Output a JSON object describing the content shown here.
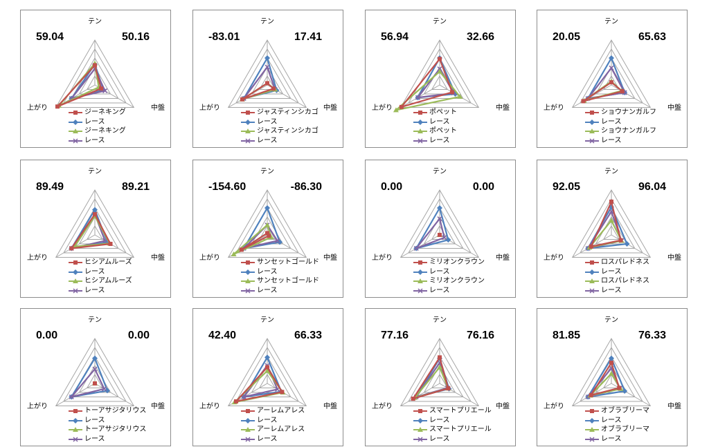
{
  "axes": [
    "テン",
    "中盤",
    "上がり"
  ],
  "colors": {
    "horse_a": "#c0504d",
    "race_a": "#4f81bd",
    "horse_b": "#9bbb59",
    "race_b": "#8064a2",
    "grid": "#a6a6a6"
  },
  "markers": {
    "horse_a": "square",
    "race_a": "diamond",
    "horse_b": "triangle",
    "race_b": "x"
  },
  "chart_data": [
    {
      "type": "radar",
      "left_value": "59.04",
      "right_value": "50.16",
      "legend": [
        "ジーネキング",
        "レース",
        "ジーネキング",
        "レース"
      ],
      "axes": [
        "テン",
        "中盤",
        "上がり"
      ],
      "rmax": 5,
      "series": [
        {
          "values": [
            2.2,
            0.8,
            4.8
          ]
        },
        {
          "values": [
            2.3,
            1.1,
            3.0
          ]
        },
        {
          "values": [
            2.4,
            0.5,
            4.6
          ]
        },
        {
          "values": [
            1.8,
            1.3,
            3.0
          ]
        }
      ]
    },
    {
      "type": "radar",
      "left_value": "-83.01",
      "right_value": "17.41",
      "legend": [
        "ジャスティンシカゴ",
        "レース",
        "ジャスティンシカゴ",
        "レース"
      ],
      "axes": [
        "テン",
        "中盤",
        "上がり"
      ],
      "rmax": 5,
      "series": [
        {
          "values": [
            0.2,
            0.8,
            3.2
          ]
        },
        {
          "values": [
            3.0,
            1.2,
            3.0
          ]
        },
        {
          "values": [
            0.2,
            1.0,
            3.2
          ]
        },
        {
          "values": [
            2.0,
            1.0,
            3.0
          ]
        }
      ]
    },
    {
      "type": "radar",
      "left_value": "56.94",
      "right_value": "32.66",
      "legend": [
        "ポペット",
        "レース",
        "ポペット",
        "レース"
      ],
      "axes": [
        "テン",
        "中盤",
        "上がり"
      ],
      "rmax": 5,
      "series": [
        {
          "values": [
            2.9,
            1.6,
            4.9
          ]
        },
        {
          "values": [
            3.0,
            2.0,
            2.8
          ]
        },
        {
          "values": [
            1.5,
            2.6,
            5.6
          ]
        },
        {
          "values": [
            1.8,
            1.8,
            2.8
          ]
        }
      ]
    },
    {
      "type": "radar",
      "left_value": "20.05",
      "right_value": "65.63",
      "legend": [
        "ショウナンガルフ",
        "レース",
        "ショウナンガルフ",
        "レース"
      ],
      "axes": [
        "テン",
        "中盤",
        "上がり"
      ],
      "rmax": 5,
      "series": [
        {
          "values": [
            0.3,
            1.4,
            3.6
          ]
        },
        {
          "values": [
            3.0,
            1.7,
            3.0
          ]
        },
        {
          "values": [
            0.4,
            1.3,
            3.5
          ]
        },
        {
          "values": [
            1.9,
            1.7,
            3.0
          ]
        }
      ]
    },
    {
      "type": "radar",
      "left_value": "89.49",
      "right_value": "89.21",
      "legend": [
        "ヒシアムルーズ",
        "レース",
        "ヒシアムルーズ",
        "レース"
      ],
      "axes": [
        "テン",
        "中盤",
        "上がり"
      ],
      "rmax": 5,
      "series": [
        {
          "values": [
            2.3,
            2.0,
            3.0
          ]
        },
        {
          "values": [
            2.8,
            1.6,
            3.0
          ]
        },
        {
          "values": [
            2.1,
            1.9,
            2.6
          ]
        },
        {
          "values": [
            2.3,
            1.3,
            3.0
          ]
        }
      ]
    },
    {
      "type": "radar",
      "left_value": "-154.60",
      "right_value": "-86.30",
      "legend": [
        "サンセットゴールド",
        "レース",
        "サンセットゴールド",
        "レース"
      ],
      "axes": [
        "テン",
        "中盤",
        "上がり"
      ],
      "rmax": 5,
      "series": [
        {
          "values": [
            0.2,
            0.2,
            3.3
          ]
        },
        {
          "values": [
            3.0,
            1.6,
            3.0
          ]
        },
        {
          "values": [
            1.1,
            0.5,
            4.3
          ]
        },
        {
          "values": [
            1.1,
            1.3,
            3.0
          ]
        }
      ]
    },
    {
      "type": "radar",
      "left_value": "0.00",
      "right_value": "0.00",
      "legend": [
        "ミリオンクラウン",
        "レース",
        "ミリオンクラウン",
        "レース"
      ],
      "axes": [
        "テン",
        "中盤",
        "上がり"
      ],
      "rmax": 5,
      "series": [
        {
          "values": [
            0,
            0,
            0
          ]
        },
        {
          "values": [
            3.0,
            1.1,
            3.0
          ]
        },
        {
          "values": [
            0,
            0,
            0
          ]
        },
        {
          "values": [
            1.8,
            0.6,
            3.0
          ]
        }
      ]
    },
    {
      "type": "radar",
      "left_value": "92.05",
      "right_value": "96.04",
      "legend": [
        "ロスパレドネス",
        "レース",
        "ロスパレドネス",
        "レース"
      ],
      "axes": [
        "テン",
        "中盤",
        "上がり"
      ],
      "rmax": 5,
      "series": [
        {
          "values": [
            3.7,
            1.2,
            2.6
          ]
        },
        {
          "values": [
            3.1,
            2.0,
            3.0
          ]
        },
        {
          "values": [
            1.6,
            1.3,
            2.8
          ]
        },
        {
          "values": [
            2.6,
            1.3,
            3.0
          ]
        }
      ]
    },
    {
      "type": "radar",
      "left_value": "0.00",
      "right_value": "0.00",
      "legend": [
        "トーアサジタリウス",
        "レース",
        "トーアサジタリウス",
        "レース"
      ],
      "axes": [
        "テン",
        "中盤",
        "上がり"
      ],
      "rmax": 5,
      "series": [
        {
          "values": [
            0,
            0,
            0
          ]
        },
        {
          "values": [
            2.8,
            1.6,
            3.0
          ]
        },
        {
          "values": [
            0,
            0,
            0
          ]
        },
        {
          "values": [
            1.6,
            1.2,
            3.0
          ]
        }
      ]
    },
    {
      "type": "radar",
      "left_value": "42.40",
      "right_value": "66.33",
      "legend": [
        "アーレムアレス",
        "レース",
        "アーレムアレス",
        "レース"
      ],
      "axes": [
        "テン",
        "中盤",
        "上がり"
      ],
      "rmax": 5,
      "series": [
        {
          "values": [
            1.8,
            1.9,
            4.0
          ]
        },
        {
          "values": [
            2.9,
            1.8,
            3.0
          ]
        },
        {
          "values": [
            1.4,
            2.0,
            4.2
          ]
        },
        {
          "values": [
            2.0,
            1.3,
            3.0
          ]
        }
      ]
    },
    {
      "type": "radar",
      "left_value": "77.16",
      "right_value": "76.16",
      "legend": [
        "スマートプリエール",
        "レース",
        "スマートプリエール",
        "レース"
      ],
      "axes": [
        "テン",
        "中盤",
        "上がり"
      ],
      "rmax": 5,
      "series": [
        {
          "values": [
            2.9,
            1.1,
            3.4
          ]
        },
        {
          "values": [
            2.8,
            1.2,
            3.0
          ]
        },
        {
          "values": [
            1.8,
            1.1,
            3.2
          ]
        },
        {
          "values": [
            2.3,
            1.0,
            3.0
          ]
        }
      ]
    },
    {
      "type": "radar",
      "left_value": "81.85",
      "right_value": "76.33",
      "legend": [
        "オブラブリーマ",
        "レース",
        "オブラブリーマ",
        "レース"
      ],
      "axes": [
        "テン",
        "中盤",
        "上がり"
      ],
      "rmax": 5,
      "series": [
        {
          "values": [
            2.3,
            1.0,
            2.6
          ]
        },
        {
          "values": [
            2.8,
            1.7,
            3.0
          ]
        },
        {
          "values": [
            1.1,
            1.2,
            2.7
          ]
        },
        {
          "values": [
            1.7,
            1.1,
            3.0
          ]
        }
      ]
    }
  ]
}
